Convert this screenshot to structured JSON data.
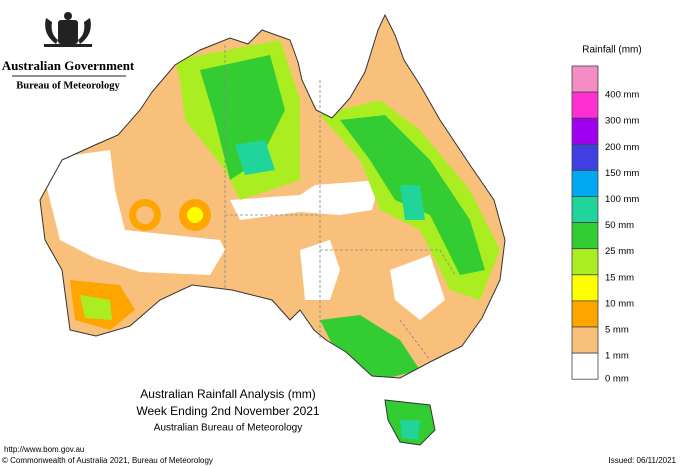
{
  "header": {
    "agency": "Australian Government",
    "bureau": "Bureau of Meteorology"
  },
  "legend": {
    "title": "Rainfall (mm)",
    "items": [
      {
        "label": "",
        "color": "#f58cc4"
      },
      {
        "label": "400 mm",
        "color": "#ff2fd2"
      },
      {
        "label": "300 mm",
        "color": "#a000f0"
      },
      {
        "label": "200 mm",
        "color": "#4040e0"
      },
      {
        "label": "150 mm",
        "color": "#00a8f0"
      },
      {
        "label": "100 mm",
        "color": "#20d49a"
      },
      {
        "label": "50 mm",
        "color": "#33cc33"
      },
      {
        "label": "25 mm",
        "color": "#aaee22"
      },
      {
        "label": "15 mm",
        "color": "#ffff00"
      },
      {
        "label": "10 mm",
        "color": "#ffa500"
      },
      {
        "label": "5 mm",
        "color": "#f9c07c"
      },
      {
        "label": "1 mm",
        "color": "#ffffff"
      }
    ],
    "bottom_label": "0 mm"
  },
  "caption": {
    "title": "Australian Rainfall Analysis (mm)",
    "subtitle": "Week Ending 2nd November 2021",
    "source": "Australian Bureau of Meteorology"
  },
  "footer": {
    "url": "http://www.bom.gov.au",
    "copyright": "© Commonwealth of Australia 2021, Bureau of Meteorology",
    "issued": "Issued: 06/11/2021"
  }
}
